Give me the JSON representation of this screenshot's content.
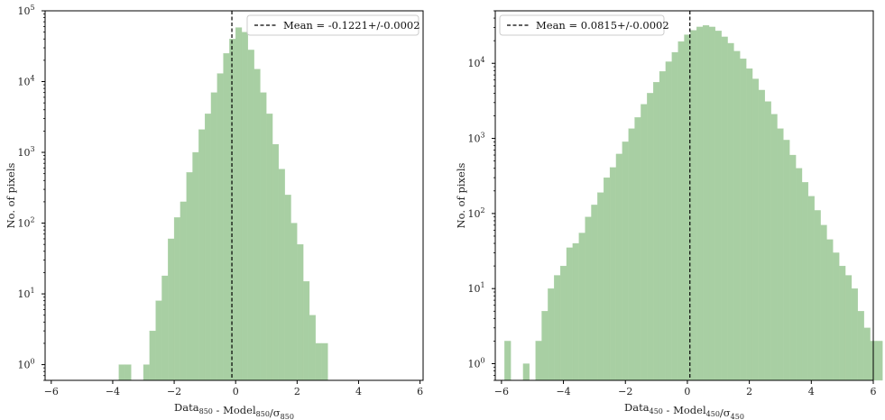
{
  "chart_data": [
    {
      "type": "bar",
      "xlabel": "Data_850 - Model_850/σ_850",
      "xlabel_parts": {
        "pre": "Data",
        "sub1": "850",
        "mid": " - Model",
        "sub2": "850",
        "slash": "/σ",
        "sub3": "850"
      },
      "ylabel": "No. of pixels",
      "yscale": "log",
      "xlim": [
        -6.2,
        6.1
      ],
      "ylim": [
        0.6,
        100000
      ],
      "xticks": [
        -6,
        -4,
        -2,
        0,
        2,
        4,
        6
      ],
      "xtick_labels": [
        "−6",
        "−4",
        "−2",
        "0",
        "2",
        "4",
        "6"
      ],
      "yticks": [
        1,
        10,
        100,
        1000,
        10000,
        100000
      ],
      "ytick_labels": [
        [
          "10",
          "0"
        ],
        [
          "10",
          "1"
        ],
        [
          "10",
          "2"
        ],
        [
          "10",
          "3"
        ],
        [
          "10",
          "4"
        ],
        [
          "10",
          "5"
        ]
      ],
      "bar_color": "#a8cfa3",
      "mean_line_x": -0.1221,
      "legend": {
        "label": "Mean = -0.1221+/-0.0002",
        "position": "upper right"
      },
      "bin_edges_start": -3.8,
      "bin_width": 0.2,
      "counts": [
        1,
        1,
        0,
        0,
        1,
        3,
        8,
        18,
        60,
        120,
        200,
        520,
        1000,
        2100,
        3500,
        7000,
        13000,
        25000,
        40000,
        58000,
        50000,
        28000,
        15000,
        7000,
        3500,
        1300,
        580,
        250,
        100,
        50,
        15,
        5,
        2,
        2
      ]
    },
    {
      "type": "bar",
      "xlabel": "Data_450 - Model_450/σ_450",
      "xlabel_parts": {
        "pre": "Data",
        "sub1": "450",
        "mid": " - Model",
        "sub2": "450",
        "slash": "/σ",
        "sub3": "450"
      },
      "ylabel": "No. of pixels",
      "yscale": "log",
      "xlim": [
        -6.2,
        6.0
      ],
      "ylim": [
        0.6,
        50000
      ],
      "xticks": [
        -6,
        -4,
        -2,
        0,
        2,
        4,
        6
      ],
      "xtick_labels": [
        "−6",
        "−4",
        "−2",
        "0",
        "2",
        "4",
        "6"
      ],
      "yticks": [
        1,
        10,
        100,
        1000,
        10000
      ],
      "ytick_labels": [
        [
          "10",
          "0"
        ],
        [
          "10",
          "1"
        ],
        [
          "10",
          "2"
        ],
        [
          "10",
          "3"
        ],
        [
          "10",
          "4"
        ]
      ],
      "bar_color": "#a8cfa3",
      "mean_line_x": 0.0815,
      "legend": {
        "label": "Mean = 0.0815+/-0.0002",
        "position": "upper left"
      },
      "bin_edges_start": -5.9,
      "bin_width": 0.2,
      "counts": [
        2,
        0,
        0,
        1,
        0,
        2,
        5,
        10,
        15,
        20,
        35,
        40,
        55,
        90,
        130,
        190,
        300,
        410,
        620,
        900,
        1350,
        1900,
        2850,
        4000,
        5600,
        7800,
        10500,
        14000,
        19500,
        24000,
        27500,
        30500,
        32000,
        30500,
        27000,
        22500,
        18500,
        14500,
        11500,
        8500,
        6200,
        4400,
        3100,
        2100,
        1350,
        950,
        600,
        400,
        260,
        170,
        110,
        70,
        45,
        30,
        20,
        15,
        10,
        5,
        3,
        2,
        2
      ]
    }
  ]
}
